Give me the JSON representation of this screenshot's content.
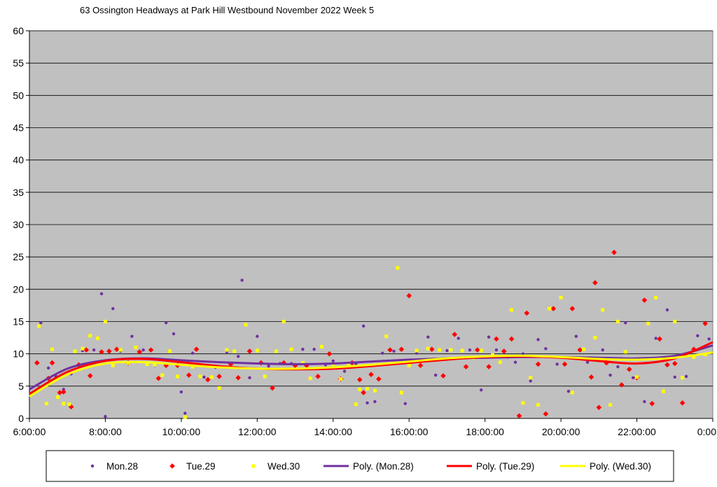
{
  "chart_data": {
    "type": "scatter",
    "title": "63 Ossington Headways at Park Hill Westbound November 2022  Week 5",
    "xlabel": "",
    "ylabel": "",
    "xlim": [
      6,
      24
    ],
    "ylim": [
      0,
      60
    ],
    "x_ticks": [
      "6:00:00",
      "8:00:00",
      "10:00:00",
      "12:00:00",
      "14:00:00",
      "16:00:00",
      "18:00:00",
      "20:00:00",
      "22:00:00",
      "0:00"
    ],
    "y_ticks": [
      "0",
      "5",
      "10",
      "15",
      "20",
      "25",
      "30",
      "35",
      "40",
      "45",
      "50",
      "55",
      "60"
    ],
    "grid": true,
    "legend_position": "bottom",
    "plot_background": "#c0c0c0",
    "series": [
      {
        "name": "Mon.28",
        "kind": "points",
        "marker": "circle",
        "color": "#7030a0",
        "x": [
          6.3,
          6.5,
          6.7,
          6.9,
          7.1,
          7.4,
          7.7,
          7.9,
          8.0,
          8.2,
          8.4,
          8.7,
          9.0,
          9.3,
          9.6,
          9.8,
          10.0,
          10.1,
          10.3,
          10.6,
          10.9,
          11.2,
          11.5,
          11.6,
          11.8,
          12.0,
          12.3,
          12.6,
          12.9,
          13.2,
          13.5,
          13.8,
          14.0,
          14.3,
          14.6,
          14.8,
          14.9,
          15.1,
          15.3,
          15.6,
          15.9,
          16.2,
          16.5,
          16.7,
          17.0,
          17.3,
          17.6,
          17.9,
          18.1,
          18.3,
          18.6,
          18.8,
          19.0,
          19.2,
          19.4,
          19.6,
          19.9,
          20.2,
          20.4,
          20.7,
          20.9,
          21.1,
          21.3,
          21.5,
          21.7,
          21.9,
          22.2,
          22.5,
          22.8,
          23.0,
          23.3,
          23.6,
          23.9
        ],
        "y": [
          14.8,
          7.8,
          6.5,
          4.5,
          6.9,
          10.5,
          10.6,
          19.3,
          0.3,
          17.0,
          10.4,
          12.7,
          10.6,
          8.2,
          14.8,
          13.1,
          4.1,
          0.8,
          10.1,
          6.4,
          7.9,
          10.3,
          9.6,
          21.4,
          6.3,
          12.7,
          8.1,
          8.5,
          8.5,
          10.7,
          10.7,
          8.3,
          8.9,
          7.3,
          8.4,
          14.3,
          2.4,
          2.6,
          10.1,
          10.4,
          2.3,
          10.1,
          12.6,
          6.7,
          10.5,
          12.4,
          10.6,
          4.4,
          12.6,
          10.6,
          9.5,
          8.7,
          10.0,
          5.8,
          12.2,
          10.8,
          8.4,
          4.2,
          12.7,
          8.7,
          12.5,
          10.6,
          6.7,
          8.0,
          14.8,
          6.3,
          2.6,
          12.4,
          16.8,
          6.4,
          6.5,
          12.8,
          12.3
        ]
      },
      {
        "name": "Tue.29",
        "kind": "points",
        "marker": "diamond",
        "color": "#ff0000",
        "x": [
          6.2,
          6.5,
          6.6,
          6.8,
          6.9,
          7.1,
          7.3,
          7.5,
          7.6,
          7.9,
          8.1,
          8.3,
          8.6,
          8.9,
          9.2,
          9.4,
          9.6,
          9.9,
          10.2,
          10.4,
          10.7,
          11.0,
          11.3,
          11.5,
          11.8,
          12.1,
          12.4,
          12.7,
          13.0,
          13.3,
          13.6,
          13.9,
          14.2,
          14.5,
          14.7,
          14.8,
          15.0,
          15.2,
          15.5,
          15.8,
          16.0,
          16.3,
          16.6,
          16.9,
          17.2,
          17.5,
          17.8,
          18.1,
          18.3,
          18.5,
          18.7,
          18.9,
          19.1,
          19.4,
          19.6,
          19.8,
          20.1,
          20.3,
          20.5,
          20.8,
          20.9,
          21.0,
          21.2,
          21.4,
          21.6,
          21.8,
          22.0,
          22.2,
          22.4,
          22.6,
          22.8,
          23.0,
          23.2,
          23.5,
          23.8
        ],
        "y": [
          8.6,
          6.2,
          8.6,
          4.0,
          4.1,
          1.8,
          8.3,
          10.6,
          6.6,
          10.3,
          10.4,
          10.7,
          8.6,
          10.3,
          10.6,
          6.2,
          8.2,
          8.2,
          6.7,
          10.7,
          6.0,
          6.5,
          8.4,
          6.3,
          10.4,
          8.6,
          4.7,
          8.6,
          8.2,
          8.2,
          6.5,
          10.0,
          6.1,
          8.6,
          6.0,
          4.0,
          6.8,
          6.1,
          10.6,
          10.7,
          19.0,
          8.2,
          10.7,
          6.6,
          13.0,
          8.0,
          10.6,
          8.0,
          12.3,
          10.4,
          12.3,
          0.4,
          16.3,
          8.4,
          0.7,
          17.0,
          8.4,
          17.0,
          10.6,
          6.4,
          21.0,
          1.7,
          8.6,
          25.7,
          5.2,
          7.6,
          6.3,
          18.3,
          2.3,
          12.3,
          8.3,
          8.5,
          2.4,
          10.7,
          14.7
        ]
      },
      {
        "name": "Wed.30",
        "kind": "points",
        "marker": "square",
        "color": "#ffff00",
        "x": [
          6.25,
          6.45,
          6.6,
          6.75,
          6.9,
          7.05,
          7.2,
          7.4,
          7.6,
          7.8,
          8.0,
          8.2,
          8.4,
          8.6,
          8.8,
          9.1,
          9.3,
          9.5,
          9.7,
          9.9,
          10.1,
          10.3,
          10.5,
          10.8,
          11.0,
          11.2,
          11.4,
          11.7,
          12.0,
          12.2,
          12.5,
          12.7,
          12.9,
          13.2,
          13.4,
          13.7,
          14.0,
          14.2,
          14.4,
          14.6,
          14.7,
          14.9,
          15.1,
          15.4,
          15.7,
          15.8,
          16.0,
          16.2,
          16.5,
          16.8,
          17.1,
          17.4,
          17.7,
          17.9,
          18.2,
          18.4,
          18.7,
          19.0,
          19.2,
          19.4,
          19.7,
          20.0,
          20.3,
          20.6,
          20.9,
          21.1,
          21.3,
          21.5,
          21.7,
          22.0,
          22.3,
          22.5,
          22.7,
          23.0,
          23.2,
          23.5,
          23.8
        ],
        "y": [
          14.3,
          2.3,
          10.7,
          3.3,
          2.3,
          2.2,
          10.4,
          10.8,
          12.8,
          12.4,
          15.0,
          8.2,
          10.6,
          8.6,
          11.0,
          8.4,
          8.3,
          6.7,
          10.4,
          6.5,
          0.2,
          8.0,
          6.5,
          6.4,
          4.7,
          10.6,
          10.4,
          14.5,
          10.5,
          6.5,
          10.4,
          15.0,
          10.7,
          8.6,
          6.2,
          11.1,
          8.4,
          6.1,
          8.3,
          2.2,
          4.5,
          4.6,
          4.3,
          12.7,
          23.3,
          4.0,
          8.2,
          10.5,
          10.8,
          10.6,
          10.6,
          10.5,
          9.4,
          10.5,
          9.8,
          8.7,
          16.8,
          2.4,
          6.3,
          2.1,
          17.0,
          18.7,
          4.0,
          10.7,
          12.5,
          16.8,
          2.1,
          15.0,
          10.3,
          6.4,
          14.7,
          18.7,
          4.2,
          15.0,
          6.3,
          9.5,
          9.9
        ]
      },
      {
        "name": "Poly. (Mon.28)",
        "kind": "trend",
        "color": "#7030a0",
        "x": [
          6,
          7,
          8,
          9,
          10,
          11,
          12,
          13,
          14,
          15,
          16,
          17,
          18,
          19,
          20,
          21,
          22,
          23,
          24
        ],
        "y": [
          4.5,
          7.7,
          9.0,
          9.3,
          9.0,
          8.7,
          8.5,
          8.4,
          8.5,
          8.8,
          9.1,
          9.3,
          9.4,
          9.5,
          9.5,
          9.4,
          9.3,
          9.7,
          11.3
        ]
      },
      {
        "name": "Poly. (Tue.29)",
        "kind": "trend",
        "color": "#ff0000",
        "x": [
          6,
          7,
          8,
          9,
          10,
          11,
          12,
          13,
          14,
          15,
          16,
          17,
          18,
          19,
          20,
          21,
          22,
          23,
          24
        ],
        "y": [
          3.8,
          7.2,
          8.9,
          9.2,
          8.7,
          8.1,
          7.7,
          7.6,
          7.7,
          8.1,
          8.6,
          9.1,
          9.5,
          9.6,
          9.4,
          8.9,
          8.5,
          9.3,
          11.8
        ]
      },
      {
        "name": "Poly. (Wed.30)",
        "kind": "trend",
        "color": "#ffff00",
        "x": [
          6,
          7,
          8,
          9,
          10,
          11,
          12,
          13,
          14,
          15,
          16,
          17,
          18,
          19,
          20,
          21,
          22,
          23,
          24
        ],
        "y": [
          3.4,
          6.8,
          8.5,
          8.7,
          8.3,
          7.9,
          7.7,
          7.7,
          7.9,
          8.3,
          8.8,
          9.3,
          9.6,
          9.7,
          9.5,
          9.2,
          9.1,
          9.4,
          10.2
        ]
      }
    ]
  }
}
